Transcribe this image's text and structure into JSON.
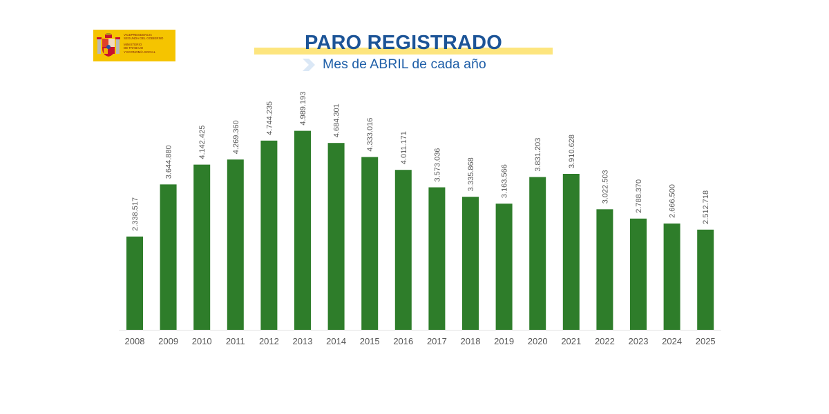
{
  "header": {
    "logo_lines": [
      "VICEPRESIDENCIA",
      "SEGUNDA DEL GOBIERNO",
      "MINISTERIO",
      "DE TRABAJO",
      "Y ECONOMÍA SOCIAL"
    ],
    "title": "PARO REGISTRADO",
    "subtitle": "Mes de ABRIL de cada año"
  },
  "colors": {
    "bar": "#2e7d2a",
    "title": "#1c5497",
    "subtitle": "#1f5fa8",
    "title_highlight": "#fde57e",
    "logo_background": "#f5c400",
    "axis_label": "#555555",
    "value_label": "#595959"
  },
  "icons": [
    "spain-coat-of-arms-icon",
    "chevron-right-icon"
  ],
  "chart_data": {
    "type": "bar",
    "title": "PARO REGISTRADO",
    "subtitle": "Mes de ABRIL de cada año",
    "xlabel": "",
    "ylabel": "",
    "ylim": [
      0,
      5400000
    ],
    "grid": false,
    "legend": "none",
    "categories": [
      "2008",
      "2009",
      "2010",
      "2011",
      "2012",
      "2013",
      "2014",
      "2015",
      "2016",
      "2017",
      "2018",
      "2019",
      "2020",
      "2021",
      "2022",
      "2023",
      "2024",
      "2025"
    ],
    "values": [
      2338517,
      3644880,
      4142425,
      4269360,
      4744235,
      4989193,
      4684301,
      4333016,
      4011171,
      3573036,
      3335868,
      3163566,
      3831203,
      3910628,
      3022503,
      2788370,
      2666500,
      2512718
    ],
    "data_labels": [
      "2.338.517",
      "3.644.880",
      "4.142.425",
      "4.269.360",
      "4.744.235",
      "4.989.193",
      "4.684.301",
      "4.333.016",
      "4.011.171",
      "3.573.036",
      "3.335.868",
      "3.163.566",
      "3.831.203",
      "3.910.628",
      "3.022.503",
      "2.788.370",
      "2.666.500",
      "2.512.718"
    ]
  }
}
